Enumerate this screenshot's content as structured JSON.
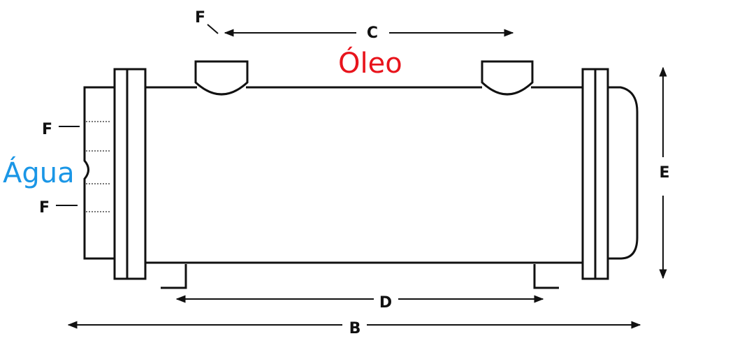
{
  "labels": {
    "f_top": "F",
    "c": "C",
    "oil": "Óleo",
    "f_left_upper": "F",
    "water": "Água",
    "f_left_lower": "F",
    "e": "E",
    "d": "D",
    "b": "B"
  },
  "colors": {
    "oil": "#e8141c",
    "water": "#1a96e6",
    "line": "#111111"
  }
}
